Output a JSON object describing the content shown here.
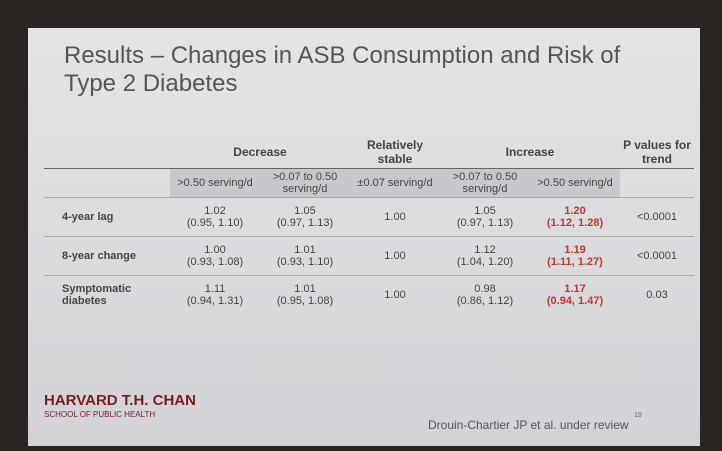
{
  "slide": {
    "title": "Results – Changes in ASB Consumption and Risk of Type 2 Diabetes"
  },
  "table": {
    "group_headers": {
      "decrease": "Decrease",
      "stable": "Relatively stable",
      "increase": "Increase",
      "p_trend": "P values for trend"
    },
    "column_headers": [
      ">0.50 serving/d",
      ">0.07 to 0.50 serving/d",
      "±0.07 serving/d",
      ">0.07 to 0.50 serving/d",
      ">0.50 serving/d"
    ],
    "rows": [
      {
        "label": "4-year lag",
        "cells": [
          {
            "estimate": "1.02",
            "ci": "(0.95, 1.10)"
          },
          {
            "estimate": "1.05",
            "ci": "(0.97, 1.13)"
          },
          {
            "estimate": "1.00"
          },
          {
            "estimate": "1.05",
            "ci": "(0.97, 1.13)"
          },
          {
            "estimate": "1.20",
            "ci": "(1.12, 1.28)"
          }
        ],
        "p": "<0.0001"
      },
      {
        "label": "8-year change",
        "cells": [
          {
            "estimate": "1.00",
            "ci": "(0.93, 1.08)"
          },
          {
            "estimate": "1.01",
            "ci": "(0.93, 1.10)"
          },
          {
            "estimate": "1.00"
          },
          {
            "estimate": "1.12",
            "ci": "(1.04, 1.20)"
          },
          {
            "estimate": "1.19",
            "ci": "(1.11, 1.27)"
          }
        ],
        "p": "<0.0001"
      },
      {
        "label": "Symptomatic diabetes",
        "cells": [
          {
            "estimate": "1.11",
            "ci": "(0.94, 1.31)"
          },
          {
            "estimate": "1.01",
            "ci": "(0.95, 1.08)"
          },
          {
            "estimate": "1.00"
          },
          {
            "estimate": "0.98",
            "ci": "(0.86, 1.12)"
          },
          {
            "estimate": "1.17",
            "ci": "(0.94, 1.47)"
          }
        ],
        "p": "0.03"
      }
    ]
  },
  "footer": {
    "logo": "HARVARD T.H. CHAN",
    "logo_sub": "SCHOOL OF PUBLIC HEALTH",
    "citation": "Drouin-Chartier JP et al. under review",
    "page": "19"
  }
}
